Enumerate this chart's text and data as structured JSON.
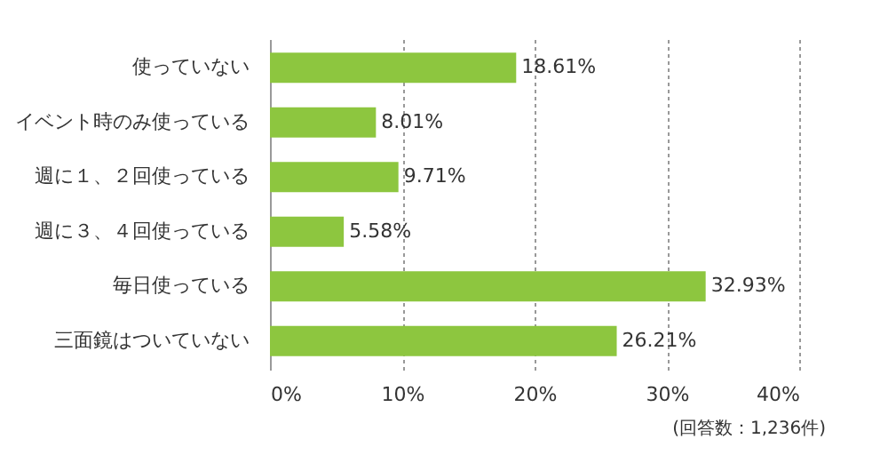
{
  "chart_data": {
    "type": "bar",
    "orientation": "horizontal",
    "categories": [
      "使っていない",
      "イベント時のみ使っている",
      "週に１、２回使っている",
      "週に３、４回使っている",
      "毎日使っている",
      "三面鏡はついていない"
    ],
    "values": [
      18.61,
      8.01,
      9.71,
      5.58,
      32.93,
      26.21
    ],
    "value_labels": [
      "18.61%",
      "8.01%",
      "9.71%",
      "5.58%",
      "32.93%",
      "26.21%"
    ],
    "color": "#8dc63f",
    "xlim": [
      0,
      40
    ],
    "xticks": [
      {
        "value": 0,
        "label": "0%"
      },
      {
        "value": 10,
        "label": "10%"
      },
      {
        "value": 20,
        "label": "20%"
      },
      {
        "value": 30,
        "label": "30%"
      },
      {
        "value": 40,
        "label": "40%"
      }
    ],
    "grid": "x",
    "annotations": [
      "(回答数：1,236件)"
    ]
  }
}
